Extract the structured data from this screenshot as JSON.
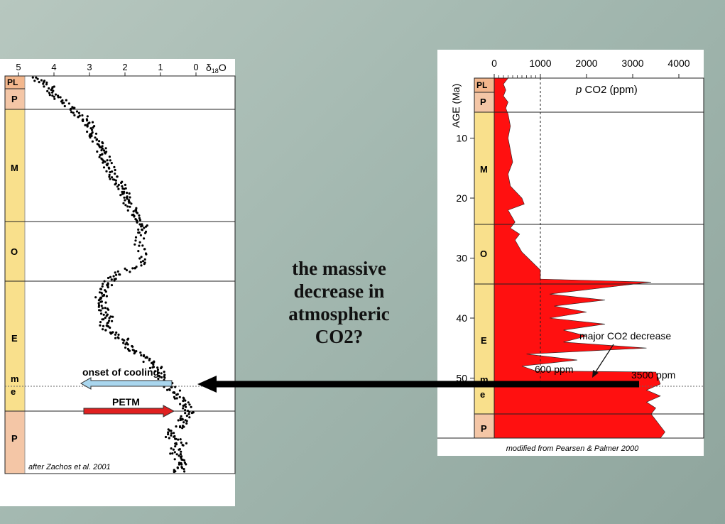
{
  "caption": {
    "lines": [
      "the massive",
      "decrease in",
      "atmospheric",
      "CO2?"
    ]
  },
  "left_chart": {
    "x_ticks": [
      "5",
      "4",
      "3",
      "2",
      "1",
      "0"
    ],
    "x_label_symbol": "δ",
    "x_label_sub": "18",
    "x_label_tail": "O",
    "epochs": [
      "PL",
      "P",
      "M",
      "O",
      "E",
      "m",
      "e",
      "P"
    ],
    "onset_label": "onset of cooling",
    "petm_label": "PETM",
    "credit": "after Zachos et al. 2001",
    "colors": {
      "epoch": "#f9e08c",
      "pliocene": "#f3b78d",
      "paleocene": "#f4c6a6",
      "cool_arrow": "#a9d6ee",
      "warm_arrow": "#e02020"
    }
  },
  "right_chart": {
    "x_ticks": [
      "0",
      "1000",
      "2000",
      "3000",
      "4000"
    ],
    "y_axis_label": "AGE (Ma)",
    "y_ticks": [
      "10",
      "20",
      "30",
      "40",
      "50"
    ],
    "series_label_p": "p",
    "series_label_rest": "CO2 (ppm)",
    "epochs": [
      "PL",
      "P",
      "M",
      "O",
      "E",
      "m",
      "e",
      "P"
    ],
    "annotations": {
      "major": "major CO2 decrease",
      "low": "600 ppm",
      "high": "3500 ppm"
    },
    "credit": "modified from Pearsen & Palmer 2000",
    "colors": {
      "fill": "#ff1010",
      "epoch": "#f9e08c",
      "pliocene": "#f3b78d"
    }
  },
  "chart_data": [
    {
      "type": "scatter",
      "xlabel": "δ18O",
      "xlim": [
        5,
        0
      ],
      "x": [
        4.5,
        4.2,
        4.0,
        3.8,
        3.5,
        3.2,
        3.0,
        2.9,
        2.8,
        2.7,
        2.6,
        2.5,
        2.4,
        2.3,
        2.1,
        2.0,
        1.9,
        1.8,
        1.6,
        1.5,
        1.5,
        1.6,
        1.4,
        2.0,
        2.4,
        2.6,
        2.7,
        2.6,
        2.6,
        2.5,
        2.6,
        2.3,
        2.0,
        1.8,
        1.5,
        1.2,
        1.0,
        0.9,
        0.7,
        0.5,
        0.3,
        0.2,
        0.3,
        0.5,
        0.8,
        0.4,
        0.6,
        0.5,
        0.4,
        0.5
      ],
      "y": [
        0,
        2,
        4,
        6,
        8,
        10,
        12,
        14,
        16,
        18,
        20,
        22,
        24,
        26,
        28,
        30,
        32,
        34,
        36,
        38,
        40,
        44,
        48,
        50,
        52,
        54,
        56,
        58,
        60,
        62,
        64,
        66,
        68,
        70,
        72,
        74,
        76,
        78,
        80,
        82,
        84,
        86,
        88,
        90,
        92,
        94,
        96,
        98,
        100,
        102
      ]
    },
    {
      "type": "area",
      "xlabel": "pCO2 (ppm)",
      "ylabel": "AGE (Ma)",
      "xlim": [
        0,
        4500
      ],
      "ylim": [
        0,
        60
      ],
      "x": [
        300,
        200,
        250,
        200,
        300,
        250,
        300,
        350,
        300,
        350,
        400,
        300,
        350,
        600,
        650,
        300,
        450,
        350,
        550,
        450,
        600,
        1000,
        1000,
        1000,
        3400,
        1200,
        2400,
        1300,
        2000,
        1200,
        2400,
        1500,
        2000,
        1500,
        3300,
        700,
        1800,
        600,
        900,
        3500,
        3600,
        3300,
        3600,
        3300,
        3500,
        3400,
        3500,
        3600,
        3700,
        3600,
        3500
      ],
      "y": [
        0,
        1,
        2,
        3,
        4,
        5,
        6,
        8,
        10,
        12,
        14,
        16,
        18,
        20,
        21,
        22,
        24,
        25,
        26,
        27,
        29,
        32,
        33,
        33.5,
        34,
        36,
        37,
        38,
        39,
        40,
        41,
        42,
        43,
        44,
        45,
        46,
        47,
        48,
        48.8,
        49,
        51,
        52,
        53,
        54,
        55,
        56,
        57,
        58,
        59,
        60,
        60
      ]
    }
  ]
}
